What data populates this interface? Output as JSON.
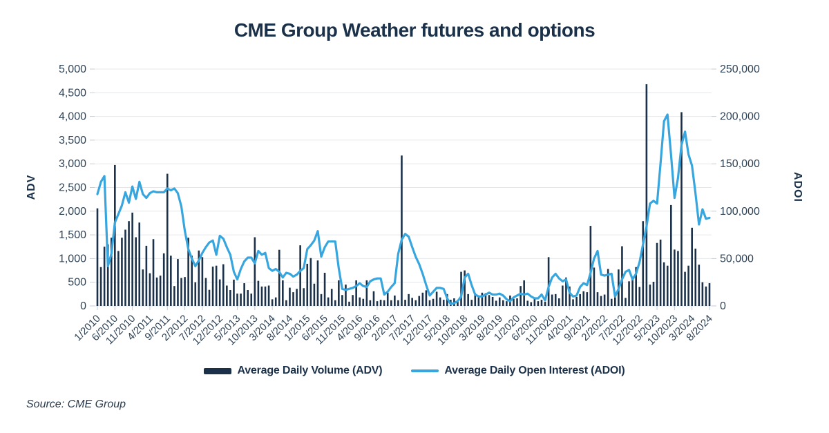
{
  "title": "CME Group Weather futures and options",
  "source_note": "Source: CME Group",
  "colors": {
    "bar": "#1b3149",
    "line": "#38a6de",
    "grid": "#e4e7ea",
    "tick": "#c7cdd3",
    "axis_text": "#2f4356",
    "title_text": "#1b3149"
  },
  "left_axis": {
    "label": "ADV",
    "min": 0,
    "max": 5000,
    "step": 500,
    "tick_labels": [
      "0",
      "500",
      "1,000",
      "1,500",
      "2,000",
      "2,500",
      "3,000",
      "3,500",
      "4,000",
      "4,500",
      "5,000"
    ]
  },
  "right_axis": {
    "label": "ADOI",
    "min": 0,
    "max": 250000,
    "step": 50000,
    "tick_labels": [
      "0",
      "50,000",
      "100,000",
      "150,000",
      "200,000",
      "250,000"
    ]
  },
  "legend": [
    {
      "label": "Average Daily Volume (ADV)",
      "type": "bar"
    },
    {
      "label": "Average Daily Open Interest (ADOI)",
      "type": "line"
    }
  ],
  "chart_data": {
    "type": "combo",
    "x_tick_every": 5,
    "x": [
      "1/2010",
      "2/2010",
      "3/2010",
      "4/2010",
      "5/2010",
      "6/2010",
      "7/2010",
      "8/2010",
      "9/2010",
      "10/2010",
      "11/2010",
      "12/2010",
      "1/2011",
      "2/2011",
      "3/2011",
      "4/2011",
      "5/2011",
      "6/2011",
      "7/2011",
      "8/2011",
      "9/2011",
      "10/2011",
      "11/2011",
      "12/2011",
      "1/2012",
      "2/2012",
      "3/2012",
      "4/2012",
      "5/2012",
      "6/2012",
      "7/2012",
      "8/2012",
      "9/2012",
      "10/2012",
      "11/2012",
      "12/2012",
      "1/2013",
      "2/2013",
      "3/2013",
      "4/2013",
      "5/2013",
      "6/2013",
      "7/2013",
      "8/2013",
      "9/2013",
      "10/2013",
      "11/2013",
      "12/2013",
      "1/2014",
      "2/2014",
      "3/2014",
      "4/2014",
      "5/2014",
      "6/2014",
      "7/2014",
      "8/2014",
      "9/2014",
      "10/2014",
      "11/2014",
      "12/2014",
      "1/2015",
      "2/2015",
      "3/2015",
      "4/2015",
      "5/2015",
      "6/2015",
      "7/2015",
      "8/2015",
      "9/2015",
      "10/2015",
      "11/2015",
      "12/2015",
      "1/2016",
      "2/2016",
      "3/2016",
      "4/2016",
      "5/2016",
      "6/2016",
      "7/2016",
      "8/2016",
      "9/2016",
      "10/2016",
      "11/2016",
      "12/2016",
      "1/2017",
      "2/2017",
      "3/2017",
      "4/2017",
      "5/2017",
      "6/2017",
      "7/2017",
      "8/2017",
      "9/2017",
      "10/2017",
      "11/2017",
      "12/2017",
      "1/2018",
      "2/2018",
      "3/2018",
      "4/2018",
      "5/2018",
      "6/2018",
      "7/2018",
      "8/2018",
      "9/2018",
      "10/2018",
      "11/2018",
      "12/2018",
      "1/2019",
      "2/2019",
      "3/2019",
      "4/2019",
      "5/2019",
      "6/2019",
      "7/2019",
      "8/2019",
      "9/2019",
      "10/2019",
      "11/2019",
      "12/2019",
      "1/2020",
      "2/2020",
      "3/2020",
      "4/2020",
      "5/2020",
      "6/2020",
      "7/2020",
      "8/2020",
      "9/2020",
      "10/2020",
      "11/2020",
      "12/2020",
      "1/2021",
      "2/2021",
      "3/2021",
      "4/2021",
      "5/2021",
      "6/2021",
      "7/2021",
      "8/2021",
      "9/2021",
      "10/2021",
      "11/2021",
      "12/2021",
      "1/2022",
      "2/2022",
      "3/2022",
      "4/2022",
      "5/2022",
      "6/2022",
      "7/2022",
      "8/2022",
      "9/2022",
      "10/2022",
      "11/2022",
      "12/2022",
      "1/2023",
      "2/2023",
      "3/2023",
      "4/2023",
      "5/2023",
      "6/2023",
      "7/2023",
      "8/2023",
      "9/2023",
      "10/2023",
      "11/2023",
      "12/2023",
      "1/2024",
      "2/2024",
      "3/2024",
      "4/2024",
      "5/2024",
      "6/2024",
      "7/2024",
      "8/2024"
    ],
    "series": [
      {
        "name": "Average Daily Volume (ADV)",
        "type": "bar",
        "axis": "left",
        "values": [
          2060,
          820,
          1250,
          1300,
          1440,
          2975,
          1160,
          1440,
          1610,
          1790,
          1970,
          1450,
          1760,
          770,
          1270,
          690,
          1410,
          600,
          640,
          1110,
          2790,
          1060,
          420,
          990,
          590,
          610,
          1440,
          1060,
          500,
          1170,
          1030,
          590,
          340,
          830,
          850,
          560,
          880,
          430,
          335,
          555,
          260,
          260,
          480,
          335,
          260,
          1450,
          530,
          410,
          410,
          430,
          140,
          180,
          1185,
          540,
          120,
          385,
          290,
          360,
          1280,
          375,
          890,
          1010,
          470,
          960,
          250,
          700,
          180,
          360,
          120,
          540,
          230,
          450,
          90,
          230,
          540,
          180,
          150,
          540,
          120,
          310,
          100,
          130,
          120,
          280,
          120,
          220,
          120,
          3175,
          130,
          250,
          170,
          120,
          210,
          280,
          330,
          120,
          150,
          300,
          180,
          130,
          250,
          130,
          160,
          120,
          720,
          750,
          250,
          130,
          270,
          180,
          280,
          270,
          230,
          190,
          110,
          180,
          120,
          100,
          220,
          150,
          160,
          420,
          540,
          110,
          80,
          180,
          100,
          130,
          90,
          1030,
          240,
          250,
          160,
          430,
          600,
          410,
          140,
          190,
          250,
          310,
          290,
          1690,
          810,
          290,
          210,
          240,
          780,
          150,
          180,
          770,
          1260,
          170,
          520,
          620,
          820,
          400,
          1790,
          4680,
          450,
          510,
          1330,
          1400,
          920,
          850,
          2130,
          1190,
          1160,
          4090,
          720,
          850,
          1650,
          1210,
          870,
          500,
          410,
          480
        ]
      },
      {
        "name": "Average Daily Open Interest (ADOI)",
        "type": "line",
        "axis": "right",
        "values": [
          118000,
          131000,
          137000,
          42000,
          55000,
          88000,
          97000,
          106000,
          120000,
          109000,
          126000,
          113000,
          131000,
          118000,
          114000,
          119000,
          121000,
          120000,
          120000,
          120000,
          124000,
          122000,
          124000,
          119000,
          105000,
          79000,
          60000,
          50000,
          42000,
          48000,
          56000,
          62000,
          67000,
          69000,
          54000,
          74000,
          71000,
          62000,
          54000,
          36000,
          28000,
          39000,
          47000,
          51000,
          51000,
          45000,
          58000,
          54000,
          56000,
          40000,
          37000,
          39000,
          36000,
          30000,
          35000,
          34000,
          31000,
          33000,
          37000,
          40000,
          60000,
          64000,
          69000,
          79000,
          52000,
          62000,
          68000,
          68000,
          68000,
          40000,
          18000,
          17000,
          18000,
          19000,
          21000,
          24000,
          21000,
          20000,
          26000,
          28000,
          29000,
          29000,
          12000,
          15000,
          20000,
          24000,
          55000,
          70000,
          76000,
          73000,
          62000,
          52000,
          44000,
          34000,
          22000,
          11000,
          15000,
          19000,
          19000,
          18000,
          8000,
          2000,
          3000,
          5000,
          10000,
          30000,
          34000,
          22000,
          12000,
          10000,
          10000,
          12000,
          14000,
          12000,
          12000,
          13000,
          11000,
          7000,
          5000,
          9000,
          11000,
          13000,
          12000,
          13000,
          10000,
          8000,
          8000,
          12000,
          6000,
          20000,
          30000,
          34000,
          29000,
          26000,
          28000,
          14000,
          10000,
          11000,
          20000,
          24000,
          22000,
          35000,
          50000,
          58000,
          33000,
          32000,
          33000,
          34000,
          10000,
          18000,
          28000,
          36000,
          38000,
          28000,
          34000,
          46000,
          65000,
          84000,
          108000,
          111000,
          108000,
          150000,
          195000,
          202000,
          160000,
          114000,
          135000,
          170000,
          184000,
          160000,
          148000,
          119000,
          86000,
          102000,
          92000,
          93000
        ]
      }
    ]
  }
}
